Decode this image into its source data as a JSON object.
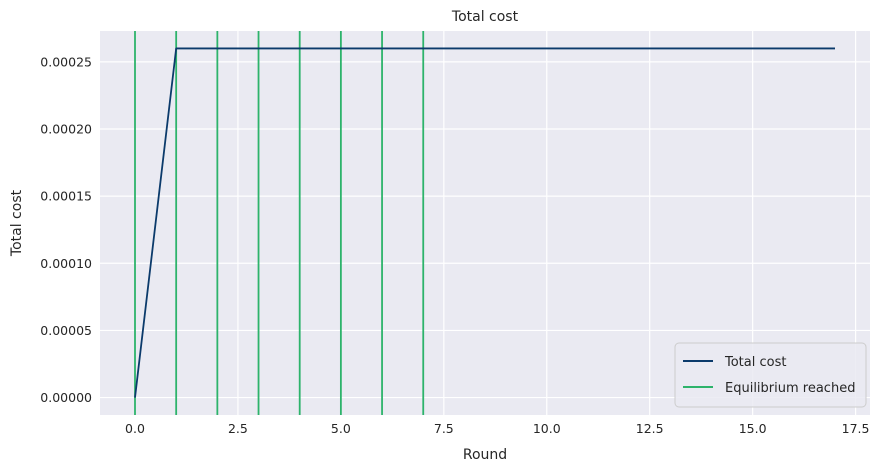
{
  "chart_data": {
    "type": "line",
    "title": "Total cost",
    "xlabel": "Round",
    "ylabel": "Total cost",
    "xlim": [
      -0.85,
      17.85
    ],
    "ylim": [
      -1.3e-05,
      0.000273
    ],
    "x_ticks": [
      0,
      2.5,
      5,
      7.5,
      10,
      12.5,
      15,
      17.5
    ],
    "x_tick_labels": [
      "0.0",
      "2.5",
      "5.0",
      "7.5",
      "10.0",
      "12.5",
      "15.0",
      "17.5"
    ],
    "y_ticks": [
      0,
      5e-05,
      0.0001,
      0.00015,
      0.0002,
      0.00025
    ],
    "y_tick_labels": [
      "0.00000",
      "0.00005",
      "0.00010",
      "0.00015",
      "0.00020",
      "0.00025"
    ],
    "grid": true,
    "legend_position": "lower-right",
    "series": [
      {
        "name": "Total cost",
        "color": "#0b3a6b",
        "x": [
          0,
          1,
          17
        ],
        "y": [
          0,
          0.00026,
          0.00026
        ]
      }
    ],
    "vlines": {
      "name": "Equilibrium reached",
      "color": "#2db36b",
      "x": [
        0,
        1,
        2,
        3,
        4,
        5,
        6,
        7
      ]
    }
  }
}
